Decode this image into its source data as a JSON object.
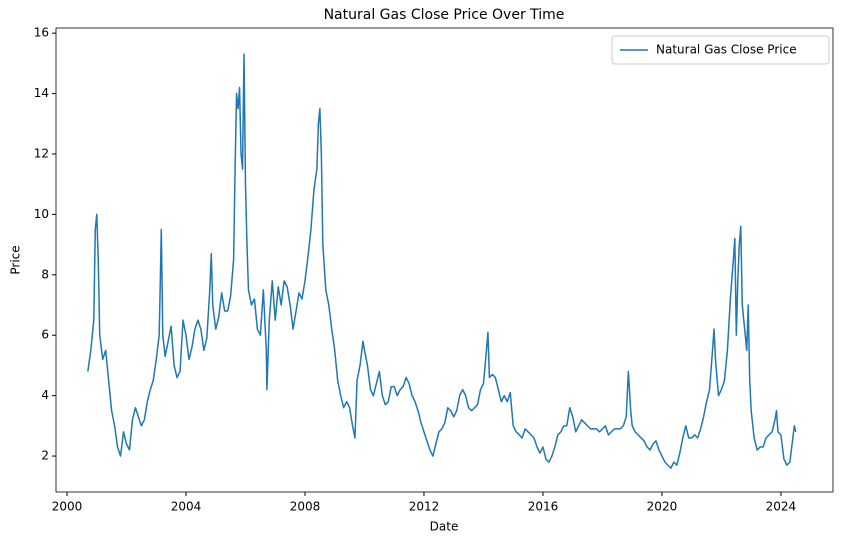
{
  "chart_data": {
    "type": "line",
    "title": "Natural Gas Close Price Over Time",
    "xlabel": "Date",
    "ylabel": "Price",
    "x": [
      2000.7,
      2000.8,
      2000.9,
      2000.95,
      2001.0,
      2001.05,
      2001.1,
      2001.2,
      2001.3,
      2001.4,
      2001.5,
      2001.6,
      2001.7,
      2001.8,
      2001.9,
      2002.0,
      2002.1,
      2002.2,
      2002.3,
      2002.4,
      2002.5,
      2002.6,
      2002.7,
      2002.8,
      2002.9,
      2003.0,
      2003.1,
      2003.17,
      2003.22,
      2003.3,
      2003.4,
      2003.5,
      2003.6,
      2003.7,
      2003.8,
      2003.9,
      2004.0,
      2004.1,
      2004.2,
      2004.3,
      2004.4,
      2004.5,
      2004.6,
      2004.7,
      2004.8,
      2004.85,
      2004.9,
      2005.0,
      2005.1,
      2005.2,
      2005.3,
      2005.4,
      2005.5,
      2005.6,
      2005.65,
      2005.7,
      2005.75,
      2005.8,
      2005.85,
      2005.9,
      2005.95,
      2006.0,
      2006.05,
      2006.1,
      2006.2,
      2006.3,
      2006.4,
      2006.5,
      2006.6,
      2006.7,
      2006.72,
      2006.8,
      2006.9,
      2007.0,
      2007.1,
      2007.2,
      2007.3,
      2007.4,
      2007.5,
      2007.6,
      2007.7,
      2007.8,
      2007.9,
      2008.0,
      2008.1,
      2008.2,
      2008.3,
      2008.4,
      2008.45,
      2008.5,
      2008.55,
      2008.6,
      2008.7,
      2008.8,
      2008.9,
      2009.0,
      2009.1,
      2009.2,
      2009.3,
      2009.4,
      2009.5,
      2009.6,
      2009.68,
      2009.75,
      2009.85,
      2009.95,
      2010.0,
      2010.1,
      2010.2,
      2010.3,
      2010.4,
      2010.5,
      2010.6,
      2010.7,
      2010.8,
      2010.9,
      2011.0,
      2011.1,
      2011.2,
      2011.3,
      2011.4,
      2011.5,
      2011.6,
      2011.7,
      2011.8,
      2011.9,
      2012.0,
      2012.1,
      2012.2,
      2012.3,
      2012.4,
      2012.5,
      2012.6,
      2012.7,
      2012.8,
      2012.9,
      2013.0,
      2013.1,
      2013.2,
      2013.3,
      2013.4,
      2013.5,
      2013.6,
      2013.7,
      2013.8,
      2013.9,
      2014.0,
      2014.1,
      2014.15,
      2014.2,
      2014.3,
      2014.4,
      2014.5,
      2014.6,
      2014.7,
      2014.8,
      2014.9,
      2015.0,
      2015.1,
      2015.2,
      2015.3,
      2015.4,
      2015.5,
      2015.6,
      2015.7,
      2015.8,
      2015.9,
      2016.0,
      2016.1,
      2016.2,
      2016.3,
      2016.4,
      2016.5,
      2016.6,
      2016.7,
      2016.8,
      2016.9,
      2017.0,
      2017.1,
      2017.2,
      2017.3,
      2017.4,
      2017.5,
      2017.6,
      2017.7,
      2017.8,
      2017.9,
      2018.0,
      2018.1,
      2018.2,
      2018.3,
      2018.4,
      2018.5,
      2018.6,
      2018.7,
      2018.8,
      2018.87,
      2018.95,
      2019.0,
      2019.1,
      2019.2,
      2019.3,
      2019.4,
      2019.5,
      2019.6,
      2019.7,
      2019.8,
      2019.9,
      2020.0,
      2020.1,
      2020.2,
      2020.3,
      2020.4,
      2020.5,
      2020.6,
      2020.7,
      2020.8,
      2020.9,
      2021.0,
      2021.1,
      2021.2,
      2021.3,
      2021.4,
      2021.5,
      2021.6,
      2021.7,
      2021.75,
      2021.8,
      2021.9,
      2022.0,
      2022.1,
      2022.2,
      2022.3,
      2022.4,
      2022.45,
      2022.5,
      2022.55,
      2022.6,
      2022.65,
      2022.7,
      2022.75,
      2022.8,
      2022.85,
      2022.9,
      2022.95,
      2023.0,
      2023.1,
      2023.2,
      2023.3,
      2023.4,
      2023.5,
      2023.6,
      2023.7,
      2023.8,
      2023.85,
      2023.9,
      2024.0,
      2024.1,
      2024.2,
      2024.3,
      2024.4,
      2024.45,
      2024.5
    ],
    "series": [
      {
        "name": "Natural Gas Close Price",
        "color": "#1f77b4",
        "values": [
          4.8,
          5.5,
          6.5,
          9.5,
          10.0,
          8.5,
          6.0,
          5.2,
          5.5,
          4.5,
          3.5,
          3.0,
          2.3,
          2.0,
          2.8,
          2.4,
          2.2,
          3.2,
          3.6,
          3.3,
          3.0,
          3.2,
          3.8,
          4.2,
          4.5,
          5.2,
          6.0,
          9.5,
          6.0,
          5.3,
          5.8,
          6.3,
          5.0,
          4.6,
          4.8,
          6.5,
          6.0,
          5.2,
          5.6,
          6.2,
          6.5,
          6.2,
          5.5,
          5.9,
          7.5,
          8.7,
          7.0,
          6.2,
          6.6,
          7.4,
          6.8,
          6.8,
          7.3,
          8.5,
          11.5,
          14.0,
          13.5,
          14.2,
          12.0,
          11.5,
          15.3,
          11.0,
          9.0,
          7.5,
          7.0,
          7.2,
          6.2,
          6.0,
          7.5,
          5.5,
          4.2,
          6.5,
          7.8,
          6.5,
          7.6,
          7.0,
          7.8,
          7.6,
          7.0,
          6.2,
          6.8,
          7.4,
          7.2,
          7.8,
          8.6,
          9.5,
          10.8,
          11.5,
          13.0,
          13.5,
          12.0,
          9.0,
          7.5,
          7.0,
          6.2,
          5.5,
          4.5,
          4.0,
          3.6,
          3.8,
          3.6,
          3.0,
          2.6,
          4.5,
          5.0,
          5.8,
          5.5,
          5.0,
          4.2,
          4.0,
          4.4,
          4.8,
          4.0,
          3.7,
          3.8,
          4.3,
          4.3,
          4.0,
          4.2,
          4.3,
          4.6,
          4.4,
          4.0,
          3.8,
          3.5,
          3.1,
          2.8,
          2.5,
          2.2,
          2.0,
          2.4,
          2.8,
          2.9,
          3.1,
          3.6,
          3.5,
          3.3,
          3.5,
          4.0,
          4.2,
          4.0,
          3.6,
          3.5,
          3.6,
          3.7,
          4.2,
          4.4,
          5.5,
          6.1,
          4.6,
          4.7,
          4.6,
          4.2,
          3.8,
          4.0,
          3.8,
          4.1,
          3.0,
          2.8,
          2.7,
          2.6,
          2.9,
          2.8,
          2.7,
          2.6,
          2.3,
          2.1,
          2.3,
          1.9,
          1.8,
          2.0,
          2.3,
          2.7,
          2.8,
          3.0,
          3.0,
          3.6,
          3.3,
          2.8,
          3.0,
          3.2,
          3.1,
          3.0,
          2.9,
          2.9,
          2.9,
          2.8,
          2.9,
          3.0,
          2.7,
          2.8,
          2.9,
          2.9,
          2.9,
          3.0,
          3.3,
          4.8,
          3.5,
          3.0,
          2.8,
          2.7,
          2.6,
          2.5,
          2.3,
          2.2,
          2.4,
          2.5,
          2.2,
          2.0,
          1.8,
          1.7,
          1.6,
          1.8,
          1.7,
          2.1,
          2.6,
          3.0,
          2.6,
          2.6,
          2.7,
          2.6,
          2.9,
          3.3,
          3.8,
          4.2,
          5.5,
          6.2,
          5.2,
          4.0,
          4.2,
          4.5,
          5.5,
          7.2,
          8.5,
          9.2,
          6.0,
          7.8,
          9.0,
          9.6,
          7.0,
          6.5,
          6.0,
          5.5,
          7.0,
          4.5,
          3.5,
          2.6,
          2.2,
          2.3,
          2.3,
          2.6,
          2.7,
          2.8,
          3.2,
          3.5,
          2.8,
          2.7,
          1.9,
          1.7,
          1.8,
          2.6,
          3.0,
          2.8
        ]
      }
    ],
    "xlim": [
      1999.63,
      2025.75
    ],
    "xticks": [
      2000,
      2004,
      2008,
      2012,
      2016,
      2020,
      2024
    ],
    "ylim": [
      0.81,
      16.17
    ],
    "yticks": [
      2,
      4,
      6,
      8,
      10,
      12,
      14,
      16
    ],
    "legend": "upper right"
  }
}
